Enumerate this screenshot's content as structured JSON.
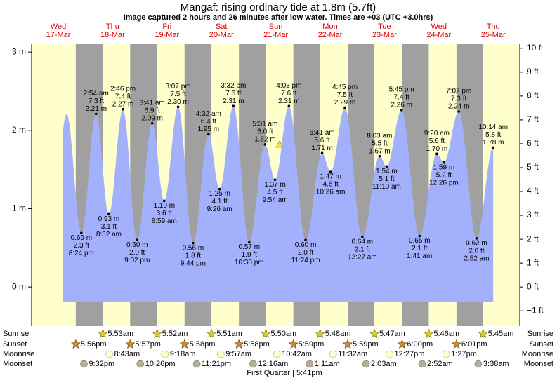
{
  "chart_data": {
    "type": "area",
    "title": "Mangaf: rising  ordinary tide at 1.8m (5.7ft)",
    "subtitle": "Image captured 2 hours and 26 minutes after low water. Times are +03 (UTC +3.0hrs)",
    "ylim": [
      -0.5,
      3.1
    ],
    "yticks": [
      {
        "value": 0,
        "label": "0 m"
      },
      {
        "value": 1,
        "label": "1 m"
      },
      {
        "value": 2,
        "label": "2 m"
      },
      {
        "value": 3,
        "label": "3 m"
      }
    ],
    "y2lim": [
      -1.64,
      10.17
    ],
    "y2ticks": [
      {
        "value": -1,
        "label": "−1 ft"
      },
      {
        "value": 0,
        "label": "0 ft"
      },
      {
        "value": 1,
        "label": "1 ft"
      },
      {
        "value": 2,
        "label": "2 ft"
      },
      {
        "value": 3,
        "label": "3 ft"
      },
      {
        "value": 4,
        "label": "4 ft"
      },
      {
        "value": 5,
        "label": "5 ft"
      },
      {
        "value": 6,
        "label": "6 ft"
      },
      {
        "value": 7,
        "label": "7 ft"
      },
      {
        "value": 8,
        "label": "8 ft"
      },
      {
        "value": 9,
        "label": "9 ft"
      },
      {
        "value": 10,
        "label": "10 ft"
      }
    ],
    "color": "#a3b1fd",
    "day_color": "#ffffcc",
    "night_color": "#a0a0a0",
    "row_labels": {
      "sunrise": "Sunrise",
      "sunset": "Sunset",
      "moonrise": "Moonrise",
      "moonset": "Moonset"
    },
    "moon_phase": "First Quarter | 5:41pm",
    "days": [
      {
        "dow": "Wed",
        "date": "17-Mar",
        "sunset": "5:56pm",
        "moonset": "9:32pm",
        "tides": [
          {
            "time": "8:24 pm",
            "height": 0.69,
            "height_label": "0.69 m",
            "feet_label": "2.3 ft"
          }
        ]
      },
      {
        "dow": "Thu",
        "date": "18-Mar",
        "sunrise": "5:53am",
        "sunset": "5:57pm",
        "moonrise": "8:43am",
        "moonset": "10:26pm",
        "tides": [
          {
            "time": "2:54 am",
            "height": 2.21,
            "height_label": "2.21 m",
            "feet_label": "7.3 ft"
          },
          {
            "time": "8:32 am",
            "height": 0.93,
            "height_label": "0.93 m",
            "feet_label": "3.1 ft"
          },
          {
            "time": "2:46 pm",
            "height": 2.27,
            "height_label": "2.27 m",
            "feet_label": "7.4 ft"
          },
          {
            "time": "9:02 pm",
            "height": 0.6,
            "height_label": "0.60 m",
            "feet_label": "2.0 ft"
          }
        ]
      },
      {
        "dow": "Fri",
        "date": "19-Mar",
        "sunrise": "5:52am",
        "sunset": "5:58pm",
        "moonrise": "9:18am",
        "moonset": "11:21pm",
        "tides": [
          {
            "time": "3:41 am",
            "height": 2.09,
            "height_label": "2.09 m",
            "feet_label": "6.9 ft"
          },
          {
            "time": "8:59 am",
            "height": 1.1,
            "height_label": "1.10 m",
            "feet_label": "3.6 ft"
          },
          {
            "time": "3:07 pm",
            "height": 2.3,
            "height_label": "2.30 m",
            "feet_label": "7.5 ft"
          },
          {
            "time": "9:44 pm",
            "height": 0.56,
            "height_label": "0.56 m",
            "feet_label": "1.8 ft"
          }
        ]
      },
      {
        "dow": "Sat",
        "date": "20-Mar",
        "sunrise": "5:51am",
        "sunset": "5:58pm",
        "moonrise": "9:57am",
        "tides": [
          {
            "time": "4:32 am",
            "height": 1.95,
            "height_label": "1.95 m",
            "feet_label": "6.4 ft"
          },
          {
            "time": "9:26 am",
            "height": 1.25,
            "height_label": "1.25 m",
            "feet_label": "4.1 ft"
          },
          {
            "time": "3:32 pm",
            "height": 2.31,
            "height_label": "2.31 m",
            "feet_label": "7.6 ft"
          },
          {
            "time": "10:30 pm",
            "height": 0.57,
            "height_label": "0.57 m",
            "feet_label": "1.9 ft"
          }
        ]
      },
      {
        "dow": "Sun",
        "date": "21-Mar",
        "sunrise": "5:50am",
        "sunset": "5:59pm",
        "moonrise": "10:42am",
        "moonset": "12:16am",
        "tides": [
          {
            "time": "5:31 am",
            "height": 1.82,
            "height_label": "1.82 m",
            "feet_label": "6.0 ft"
          },
          {
            "time": "9:54 am",
            "height": 1.37,
            "height_label": "1.37 m",
            "feet_label": "4.5 ft"
          },
          {
            "time": "4:03 pm",
            "height": 2.31,
            "height_label": "2.31 m",
            "feet_label": "7.6 ft"
          },
          {
            "time": "11:24 pm",
            "height": 0.6,
            "height_label": "0.60 m",
            "feet_label": "2.0 ft"
          }
        ]
      },
      {
        "dow": "Mon",
        "date": "22-Mar",
        "sunrise": "5:48am",
        "sunset": "5:59pm",
        "moonrise": "11:32am",
        "moonset": "1:11am",
        "tides": [
          {
            "time": "6:41 am",
            "height": 1.71,
            "height_label": "1.71 m",
            "feet_label": "5.6 ft"
          },
          {
            "time": "10:26 am",
            "height": 1.47,
            "height_label": "1.47 m",
            "feet_label": "4.8 ft"
          },
          {
            "time": "4:45 pm",
            "height": 2.29,
            "height_label": "2.29 m",
            "feet_label": "7.5 ft"
          }
        ]
      },
      {
        "dow": "Tue",
        "date": "23-Mar",
        "sunrise": "5:47am",
        "sunset": "6:00pm",
        "moonrise": "12:27pm",
        "moonset": "2:03am",
        "tides": [
          {
            "time": "12:27 am",
            "height": 0.64,
            "height_label": "0.64 m",
            "feet_label": "2.1 ft"
          },
          {
            "time": "8:03 am",
            "height": 1.67,
            "height_label": "1.67 m",
            "feet_label": "5.5 ft"
          },
          {
            "time": "11:10 am",
            "height": 1.54,
            "height_label": "1.54 m",
            "feet_label": "5.1 ft"
          },
          {
            "time": "5:45 pm",
            "height": 2.26,
            "height_label": "2.26 m",
            "feet_label": "7.4 ft"
          }
        ]
      },
      {
        "dow": "Wed",
        "date": "24-Mar",
        "sunrise": "5:46am",
        "sunset": "6:01pm",
        "moonrise": "1:27pm",
        "moonset": "2:52am",
        "tides": [
          {
            "time": "1:41 am",
            "height": 0.65,
            "height_label": "0.65 m",
            "feet_label": "2.1 ft"
          },
          {
            "time": "9:20 am",
            "height": 1.7,
            "height_label": "1.70 m",
            "feet_label": "5.6 ft"
          },
          {
            "time": "12:26 pm",
            "height": 1.59,
            "height_label": "1.59 m",
            "feet_label": "5.2 ft"
          },
          {
            "time": "7:02 pm",
            "height": 2.24,
            "height_label": "2.24 m",
            "feet_label": "7.3 ft"
          }
        ]
      },
      {
        "dow": "Thu",
        "date": "25-Mar",
        "sunrise": "5:45am",
        "moonset": "3:38am",
        "tides": [
          {
            "time": "2:52 am",
            "height": 0.62,
            "height_label": "0.62 m",
            "feet_label": "2.0 ft"
          },
          {
            "time": "10:14 am",
            "height": 1.78,
            "height_label": "1.78 m",
            "feet_label": "5.8 ft"
          }
        ]
      }
    ]
  }
}
